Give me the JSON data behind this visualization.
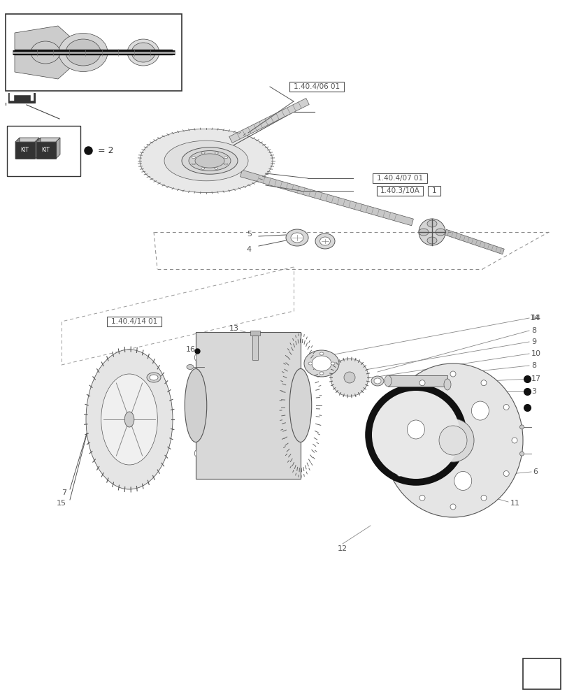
{
  "bg_color": "#ffffff",
  "line_color": "#555555",
  "text_color": "#555555",
  "labels": {
    "ref1": "1.40.4/06 01",
    "ref2": "1.40.4/07 01",
    "ref3": "1.40.3/10A",
    "ref4": "1.40.4/14 01",
    "kit_label": "= 2"
  },
  "figsize": [
    8.12,
    10.0
  ],
  "dpi": 100
}
